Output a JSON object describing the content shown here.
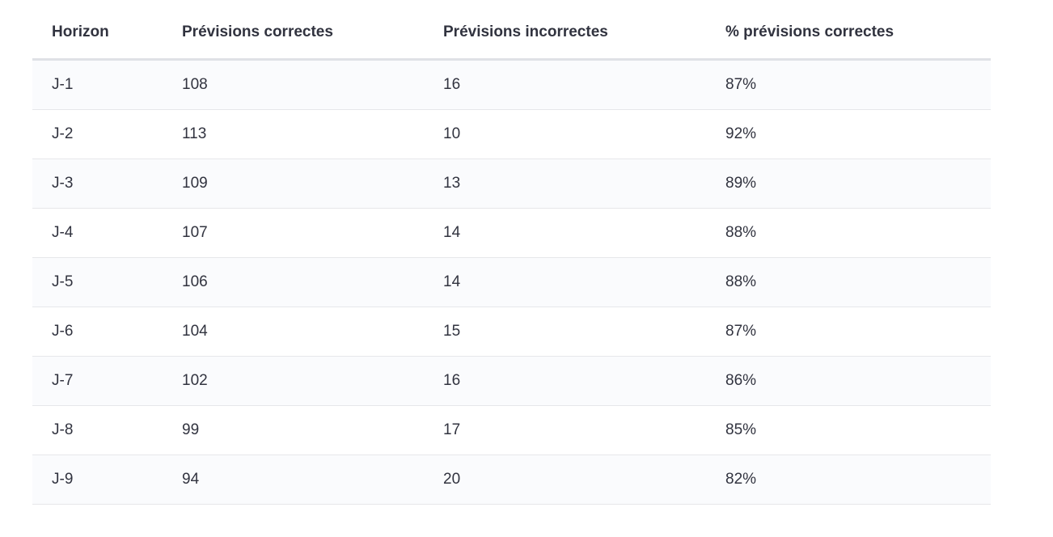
{
  "table": {
    "columns": [
      "Horizon",
      "Prévisions correctes",
      "Prévisions incorrectes",
      "% prévisions correctes"
    ],
    "rows": [
      [
        "J-1",
        "108",
        "16",
        "87%"
      ],
      [
        "J-2",
        "113",
        "10",
        "92%"
      ],
      [
        "J-3",
        "109",
        "13",
        "89%"
      ],
      [
        "J-4",
        "107",
        "14",
        "88%"
      ],
      [
        "J-5",
        "106",
        "14",
        "88%"
      ],
      [
        "J-6",
        "104",
        "15",
        "87%"
      ],
      [
        "J-7",
        "102",
        "16",
        "86%"
      ],
      [
        "J-8",
        "99",
        "17",
        "85%"
      ],
      [
        "J-9",
        "94",
        "20",
        "82%"
      ]
    ],
    "colors": {
      "text": "#31333f",
      "row_stripe": "#fafbfd",
      "row_border": "#e6e7ea",
      "header_border": "#dfe1e6",
      "page_background": "#ffffff"
    }
  }
}
